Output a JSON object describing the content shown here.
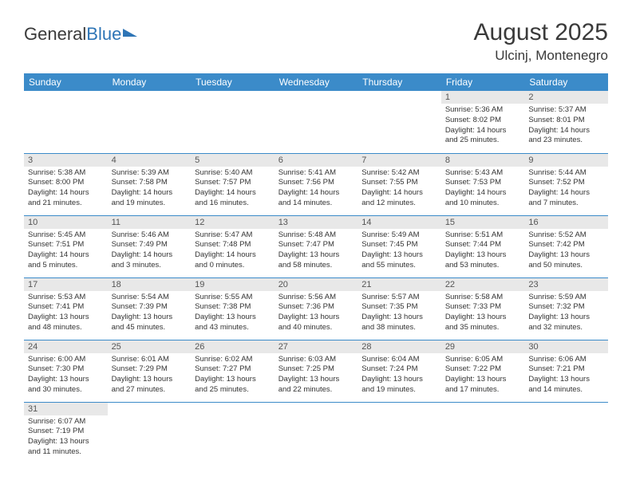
{
  "header": {
    "logo_general": "General",
    "logo_blue": "Blue",
    "month_title": "August 2025",
    "location": "Ulcinj, Montenegro"
  },
  "colors": {
    "header_bg": "#3b8bc9",
    "header_text": "#ffffff",
    "daynum_bg": "#e8e8e8",
    "border": "#3b8bc9",
    "logo_accent": "#2e75b6"
  },
  "daynames": [
    "Sunday",
    "Monday",
    "Tuesday",
    "Wednesday",
    "Thursday",
    "Friday",
    "Saturday"
  ],
  "weeks": [
    [
      null,
      null,
      null,
      null,
      null,
      {
        "n": "1",
        "sr": "Sunrise: 5:36 AM",
        "ss": "Sunset: 8:02 PM",
        "dl": "Daylight: 14 hours and 25 minutes."
      },
      {
        "n": "2",
        "sr": "Sunrise: 5:37 AM",
        "ss": "Sunset: 8:01 PM",
        "dl": "Daylight: 14 hours and 23 minutes."
      }
    ],
    [
      {
        "n": "3",
        "sr": "Sunrise: 5:38 AM",
        "ss": "Sunset: 8:00 PM",
        "dl": "Daylight: 14 hours and 21 minutes."
      },
      {
        "n": "4",
        "sr": "Sunrise: 5:39 AM",
        "ss": "Sunset: 7:58 PM",
        "dl": "Daylight: 14 hours and 19 minutes."
      },
      {
        "n": "5",
        "sr": "Sunrise: 5:40 AM",
        "ss": "Sunset: 7:57 PM",
        "dl": "Daylight: 14 hours and 16 minutes."
      },
      {
        "n": "6",
        "sr": "Sunrise: 5:41 AM",
        "ss": "Sunset: 7:56 PM",
        "dl": "Daylight: 14 hours and 14 minutes."
      },
      {
        "n": "7",
        "sr": "Sunrise: 5:42 AM",
        "ss": "Sunset: 7:55 PM",
        "dl": "Daylight: 14 hours and 12 minutes."
      },
      {
        "n": "8",
        "sr": "Sunrise: 5:43 AM",
        "ss": "Sunset: 7:53 PM",
        "dl": "Daylight: 14 hours and 10 minutes."
      },
      {
        "n": "9",
        "sr": "Sunrise: 5:44 AM",
        "ss": "Sunset: 7:52 PM",
        "dl": "Daylight: 14 hours and 7 minutes."
      }
    ],
    [
      {
        "n": "10",
        "sr": "Sunrise: 5:45 AM",
        "ss": "Sunset: 7:51 PM",
        "dl": "Daylight: 14 hours and 5 minutes."
      },
      {
        "n": "11",
        "sr": "Sunrise: 5:46 AM",
        "ss": "Sunset: 7:49 PM",
        "dl": "Daylight: 14 hours and 3 minutes."
      },
      {
        "n": "12",
        "sr": "Sunrise: 5:47 AM",
        "ss": "Sunset: 7:48 PM",
        "dl": "Daylight: 14 hours and 0 minutes."
      },
      {
        "n": "13",
        "sr": "Sunrise: 5:48 AM",
        "ss": "Sunset: 7:47 PM",
        "dl": "Daylight: 13 hours and 58 minutes."
      },
      {
        "n": "14",
        "sr": "Sunrise: 5:49 AM",
        "ss": "Sunset: 7:45 PM",
        "dl": "Daylight: 13 hours and 55 minutes."
      },
      {
        "n": "15",
        "sr": "Sunrise: 5:51 AM",
        "ss": "Sunset: 7:44 PM",
        "dl": "Daylight: 13 hours and 53 minutes."
      },
      {
        "n": "16",
        "sr": "Sunrise: 5:52 AM",
        "ss": "Sunset: 7:42 PM",
        "dl": "Daylight: 13 hours and 50 minutes."
      }
    ],
    [
      {
        "n": "17",
        "sr": "Sunrise: 5:53 AM",
        "ss": "Sunset: 7:41 PM",
        "dl": "Daylight: 13 hours and 48 minutes."
      },
      {
        "n": "18",
        "sr": "Sunrise: 5:54 AM",
        "ss": "Sunset: 7:39 PM",
        "dl": "Daylight: 13 hours and 45 minutes."
      },
      {
        "n": "19",
        "sr": "Sunrise: 5:55 AM",
        "ss": "Sunset: 7:38 PM",
        "dl": "Daylight: 13 hours and 43 minutes."
      },
      {
        "n": "20",
        "sr": "Sunrise: 5:56 AM",
        "ss": "Sunset: 7:36 PM",
        "dl": "Daylight: 13 hours and 40 minutes."
      },
      {
        "n": "21",
        "sr": "Sunrise: 5:57 AM",
        "ss": "Sunset: 7:35 PM",
        "dl": "Daylight: 13 hours and 38 minutes."
      },
      {
        "n": "22",
        "sr": "Sunrise: 5:58 AM",
        "ss": "Sunset: 7:33 PM",
        "dl": "Daylight: 13 hours and 35 minutes."
      },
      {
        "n": "23",
        "sr": "Sunrise: 5:59 AM",
        "ss": "Sunset: 7:32 PM",
        "dl": "Daylight: 13 hours and 32 minutes."
      }
    ],
    [
      {
        "n": "24",
        "sr": "Sunrise: 6:00 AM",
        "ss": "Sunset: 7:30 PM",
        "dl": "Daylight: 13 hours and 30 minutes."
      },
      {
        "n": "25",
        "sr": "Sunrise: 6:01 AM",
        "ss": "Sunset: 7:29 PM",
        "dl": "Daylight: 13 hours and 27 minutes."
      },
      {
        "n": "26",
        "sr": "Sunrise: 6:02 AM",
        "ss": "Sunset: 7:27 PM",
        "dl": "Daylight: 13 hours and 25 minutes."
      },
      {
        "n": "27",
        "sr": "Sunrise: 6:03 AM",
        "ss": "Sunset: 7:25 PM",
        "dl": "Daylight: 13 hours and 22 minutes."
      },
      {
        "n": "28",
        "sr": "Sunrise: 6:04 AM",
        "ss": "Sunset: 7:24 PM",
        "dl": "Daylight: 13 hours and 19 minutes."
      },
      {
        "n": "29",
        "sr": "Sunrise: 6:05 AM",
        "ss": "Sunset: 7:22 PM",
        "dl": "Daylight: 13 hours and 17 minutes."
      },
      {
        "n": "30",
        "sr": "Sunrise: 6:06 AM",
        "ss": "Sunset: 7:21 PM",
        "dl": "Daylight: 13 hours and 14 minutes."
      }
    ],
    [
      {
        "n": "31",
        "sr": "Sunrise: 6:07 AM",
        "ss": "Sunset: 7:19 PM",
        "dl": "Daylight: 13 hours and 11 minutes."
      },
      null,
      null,
      null,
      null,
      null,
      null
    ]
  ]
}
